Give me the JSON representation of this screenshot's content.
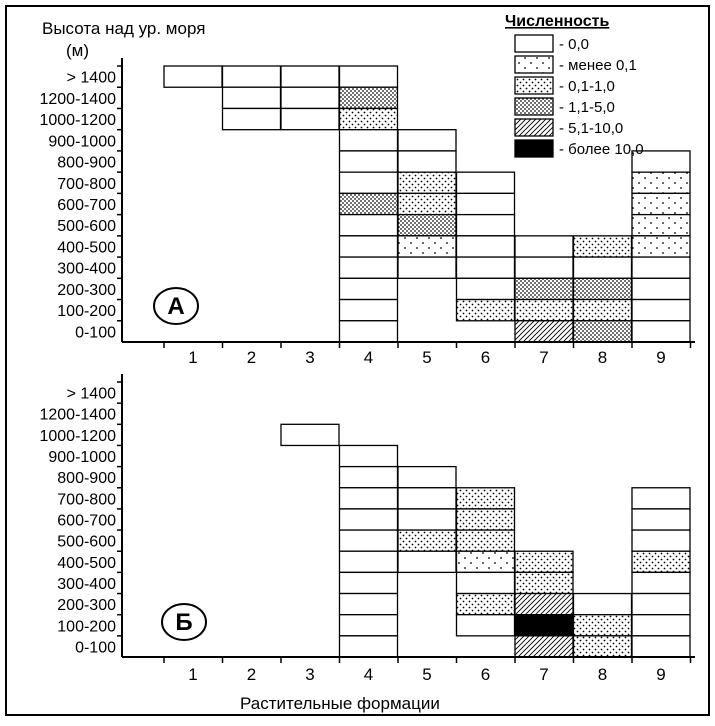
{
  "figure": {
    "ylabel_line1": "Высота над ур. моря",
    "ylabel_line2": "(м)",
    "xlabel": "Растительные формации"
  },
  "chart_data": [
    {
      "type": "heatmap",
      "panel_label": "А",
      "x": [
        "1",
        "2",
        "3",
        "4",
        "5",
        "6",
        "7",
        "8",
        "9"
      ],
      "y": [
        "0-100",
        "100-200",
        "200-300",
        "300-400",
        "400-500",
        "500-600",
        "600-700",
        "700-800",
        "800-900",
        "900-1000",
        "1000-1200",
        "1200-1400",
        "> 1400"
      ],
      "cells": [
        {
          "x": 1,
          "y": 12,
          "abundance": "0,0"
        },
        {
          "x": 2,
          "y": 12,
          "abundance": "0,0"
        },
        {
          "x": 2,
          "y": 11,
          "abundance": "0,0"
        },
        {
          "x": 2,
          "y": 10,
          "abundance": "0,0"
        },
        {
          "x": 3,
          "y": 12,
          "abundance": "0,0"
        },
        {
          "x": 3,
          "y": 11,
          "abundance": "0,0"
        },
        {
          "x": 3,
          "y": 10,
          "abundance": "0,0"
        },
        {
          "x": 4,
          "y": 12,
          "abundance": "0,0"
        },
        {
          "x": 4,
          "y": 11,
          "abundance": "1,1-5,0"
        },
        {
          "x": 4,
          "y": 10,
          "abundance": "0,1-1,0"
        },
        {
          "x": 4,
          "y": 9,
          "abundance": "0,0"
        },
        {
          "x": 4,
          "y": 8,
          "abundance": "0,0"
        },
        {
          "x": 4,
          "y": 7,
          "abundance": "0,0"
        },
        {
          "x": 4,
          "y": 6,
          "abundance": "1,1-5,0"
        },
        {
          "x": 4,
          "y": 5,
          "abundance": "0,0"
        },
        {
          "x": 4,
          "y": 4,
          "abundance": "0,0"
        },
        {
          "x": 4,
          "y": 3,
          "abundance": "0,0"
        },
        {
          "x": 4,
          "y": 2,
          "abundance": "0,0"
        },
        {
          "x": 4,
          "y": 1,
          "abundance": "0,0"
        },
        {
          "x": 4,
          "y": 0,
          "abundance": "0,0"
        },
        {
          "x": 5,
          "y": 9,
          "abundance": "0,0"
        },
        {
          "x": 5,
          "y": 8,
          "abundance": "0,0"
        },
        {
          "x": 5,
          "y": 7,
          "abundance": "0,1-1,0"
        },
        {
          "x": 5,
          "y": 6,
          "abundance": "0,1-1,0"
        },
        {
          "x": 5,
          "y": 5,
          "abundance": "1,1-5,0"
        },
        {
          "x": 5,
          "y": 4,
          "abundance": "менее 0,1"
        },
        {
          "x": 5,
          "y": 3,
          "abundance": "0,0"
        },
        {
          "x": 6,
          "y": 7,
          "abundance": "0,0"
        },
        {
          "x": 6,
          "y": 6,
          "abundance": "0,0"
        },
        {
          "x": 6,
          "y": 5,
          "abundance": "0,0"
        },
        {
          "x": 6,
          "y": 4,
          "abundance": "0,0"
        },
        {
          "x": 6,
          "y": 3,
          "abundance": "0,0"
        },
        {
          "x": 6,
          "y": 2,
          "abundance": "0,0"
        },
        {
          "x": 6,
          "y": 1,
          "abundance": "0,1-1,0"
        },
        {
          "x": 7,
          "y": 4,
          "abundance": "0,0"
        },
        {
          "x": 7,
          "y": 3,
          "abundance": "0,0"
        },
        {
          "x": 7,
          "y": 2,
          "abundance": "1,1-5,0"
        },
        {
          "x": 7,
          "y": 1,
          "abundance": "0,1-1,0"
        },
        {
          "x": 7,
          "y": 0,
          "abundance": "5,1-10,0"
        },
        {
          "x": 8,
          "y": 4,
          "abundance": "0,1-1,0"
        },
        {
          "x": 8,
          "y": 3,
          "abundance": "0,0"
        },
        {
          "x": 8,
          "y": 2,
          "abundance": "1,1-5,0"
        },
        {
          "x": 8,
          "y": 1,
          "abundance": "0,1-1,0"
        },
        {
          "x": 8,
          "y": 0,
          "abundance": "1,1-5,0"
        },
        {
          "x": 9,
          "y": 8,
          "abundance": "0,0"
        },
        {
          "x": 9,
          "y": 7,
          "abundance": "менее 0,1"
        },
        {
          "x": 9,
          "y": 6,
          "abundance": "менее 0,1"
        },
        {
          "x": 9,
          "y": 5,
          "abundance": "менее 0,1"
        },
        {
          "x": 9,
          "y": 4,
          "abundance": "менее 0,1"
        },
        {
          "x": 9,
          "y": 3,
          "abundance": "0,0"
        },
        {
          "x": 9,
          "y": 2,
          "abundance": "0,0"
        },
        {
          "x": 9,
          "y": 1,
          "abundance": "0,0"
        },
        {
          "x": 9,
          "y": 0,
          "abundance": "0,0"
        }
      ],
      "legend": {
        "title": "Численность",
        "position": "top-right",
        "entries": [
          {
            "label": "- 0,0",
            "fill": "white"
          },
          {
            "label": "- менее 0,1",
            "fill": "sparse-dots"
          },
          {
            "label": "- 0,1-1,0",
            "fill": "medium-dots"
          },
          {
            "label": "- 1,1-5,0",
            "fill": "dense-dots"
          },
          {
            "label": "- 5,1-10,0",
            "fill": "hatch"
          },
          {
            "label": "- более 10,0",
            "fill": "black"
          }
        ]
      }
    },
    {
      "type": "heatmap",
      "panel_label": "Б",
      "x": [
        "1",
        "2",
        "3",
        "4",
        "5",
        "6",
        "7",
        "8",
        "9"
      ],
      "y": [
        "0-100",
        "100-200",
        "200-300",
        "300-400",
        "400-500",
        "500-600",
        "600-700",
        "700-800",
        "800-900",
        "900-1000",
        "1000-1200",
        "1200-1400",
        "> 1400"
      ],
      "cells": [
        {
          "x": 3,
          "y": 10,
          "abundance": "0,0"
        },
        {
          "x": 4,
          "y": 9,
          "abundance": "0,0"
        },
        {
          "x": 4,
          "y": 8,
          "abundance": "0,0"
        },
        {
          "x": 4,
          "y": 7,
          "abundance": "0,0"
        },
        {
          "x": 4,
          "y": 6,
          "abundance": "0,0"
        },
        {
          "x": 4,
          "y": 5,
          "abundance": "0,0"
        },
        {
          "x": 4,
          "y": 4,
          "abundance": "0,0"
        },
        {
          "x": 4,
          "y": 3,
          "abundance": "0,0"
        },
        {
          "x": 4,
          "y": 2,
          "abundance": "0,0"
        },
        {
          "x": 4,
          "y": 1,
          "abundance": "0,0"
        },
        {
          "x": 4,
          "y": 0,
          "abundance": "0,0"
        },
        {
          "x": 5,
          "y": 8,
          "abundance": "0,0"
        },
        {
          "x": 5,
          "y": 7,
          "abundance": "0,0"
        },
        {
          "x": 5,
          "y": 6,
          "abundance": "0,0"
        },
        {
          "x": 5,
          "y": 5,
          "abundance": "0,1-1,0"
        },
        {
          "x": 5,
          "y": 4,
          "abundance": "0,0"
        },
        {
          "x": 6,
          "y": 7,
          "abundance": "0,1-1,0"
        },
        {
          "x": 6,
          "y": 6,
          "abundance": "0,1-1,0"
        },
        {
          "x": 6,
          "y": 5,
          "abundance": "0,1-1,0"
        },
        {
          "x": 6,
          "y": 4,
          "abundance": "менее 0,1"
        },
        {
          "x": 6,
          "y": 3,
          "abundance": "0,0"
        },
        {
          "x": 6,
          "y": 2,
          "abundance": "0,1-1,0"
        },
        {
          "x": 6,
          "y": 1,
          "abundance": "0,0"
        },
        {
          "x": 7,
          "y": 4,
          "abundance": "0,1-1,0"
        },
        {
          "x": 7,
          "y": 3,
          "abundance": "0,1-1,0"
        },
        {
          "x": 7,
          "y": 2,
          "abundance": "5,1-10,0"
        },
        {
          "x": 7,
          "y": 1,
          "abundance": "более 10,0"
        },
        {
          "x": 7,
          "y": 0,
          "abundance": "5,1-10,0"
        },
        {
          "x": 8,
          "y": 2,
          "abundance": "0,0"
        },
        {
          "x": 8,
          "y": 1,
          "abundance": "0,1-1,0"
        },
        {
          "x": 8,
          "y": 0,
          "abundance": "0,1-1,0"
        },
        {
          "x": 9,
          "y": 7,
          "abundance": "0,0"
        },
        {
          "x": 9,
          "y": 6,
          "abundance": "0,0"
        },
        {
          "x": 9,
          "y": 5,
          "abundance": "0,0"
        },
        {
          "x": 9,
          "y": 4,
          "abundance": "0,1-1,0"
        },
        {
          "x": 9,
          "y": 3,
          "abundance": "0,0"
        },
        {
          "x": 9,
          "y": 2,
          "abundance": "0,0"
        },
        {
          "x": 9,
          "y": 1,
          "abundance": "0,0"
        },
        {
          "x": 9,
          "y": 0,
          "abundance": "0,0"
        }
      ]
    }
  ]
}
